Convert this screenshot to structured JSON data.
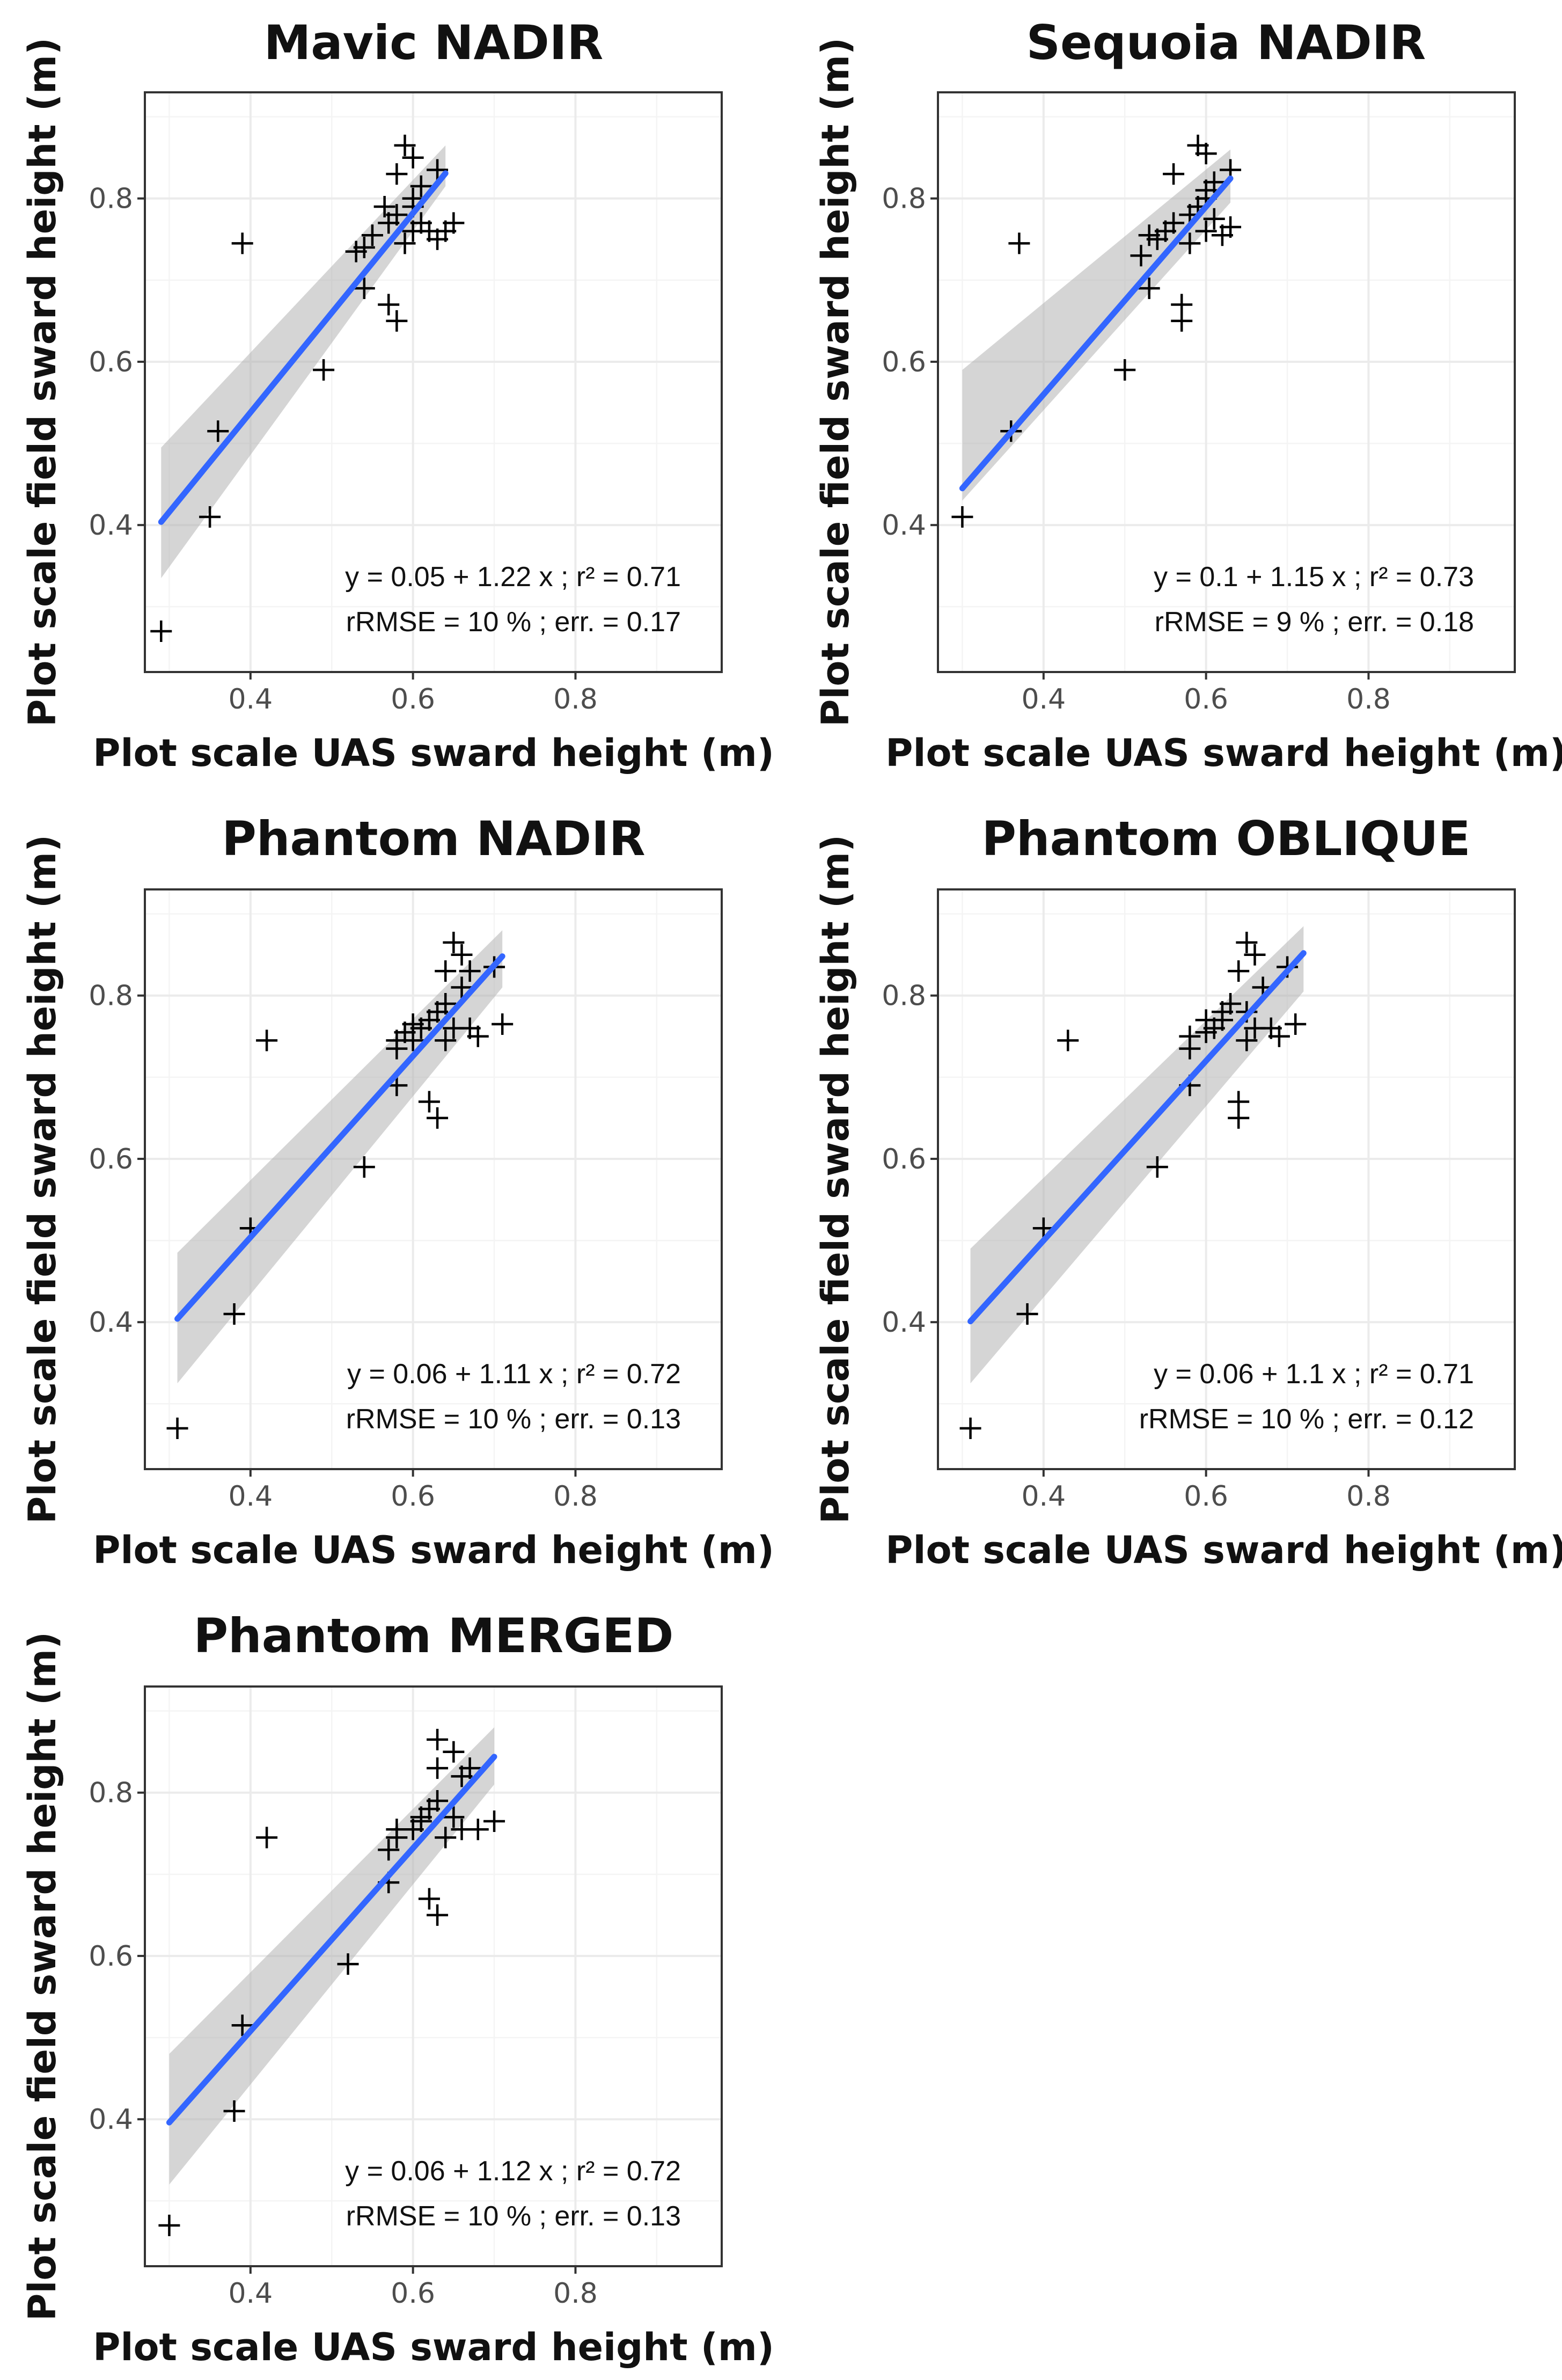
{
  "chart_data": [
    {
      "type": "scatter",
      "title": "Mavic NADIR",
      "xlabel": "Plot scale UAS sward height (m)",
      "ylabel": "Plot scale field sward height (m)",
      "xlim": [
        0.27,
        0.98
      ],
      "ylim": [
        0.22,
        0.93
      ],
      "xticks": [
        0.4,
        0.6,
        0.8
      ],
      "yticks": [
        0.4,
        0.6,
        0.8
      ],
      "xtick_labels": [
        "0.4",
        "0.6",
        "0.8"
      ],
      "ytick_labels": [
        "0.4",
        "0.6",
        "0.8"
      ],
      "points": [
        [
          0.29,
          0.27
        ],
        [
          0.35,
          0.41
        ],
        [
          0.36,
          0.515
        ],
        [
          0.39,
          0.745
        ],
        [
          0.49,
          0.59
        ],
        [
          0.53,
          0.735
        ],
        [
          0.54,
          0.69
        ],
        [
          0.54,
          0.74
        ],
        [
          0.55,
          0.755
        ],
        [
          0.57,
          0.77
        ],
        [
          0.57,
          0.67
        ],
        [
          0.58,
          0.65
        ],
        [
          0.58,
          0.83
        ],
        [
          0.58,
          0.78
        ],
        [
          0.59,
          0.865
        ],
        [
          0.59,
          0.745
        ],
        [
          0.6,
          0.76
        ],
        [
          0.6,
          0.85
        ],
        [
          0.6,
          0.8
        ],
        [
          0.61,
          0.77
        ],
        [
          0.62,
          0.76
        ],
        [
          0.63,
          0.835
        ],
        [
          0.63,
          0.75
        ],
        [
          0.64,
          0.76
        ],
        [
          0.65,
          0.77
        ],
        [
          0.565,
          0.79
        ],
        [
          0.61,
          0.815
        ],
        [
          0.6,
          0.79
        ]
      ],
      "fit": {
        "x": [
          0.29,
          0.64
        ],
        "intercept": 0.05,
        "slope": 1.22,
        "ci_low": [
          0.335,
          0.815
        ],
        "ci_high": [
          0.495,
          0.865
        ]
      },
      "annotation": [
        "y = 0.05 + 1.22 x ; r² = 0.71",
        "rRMSE = 10 % ; err. = 0.17"
      ]
    },
    {
      "type": "scatter",
      "title": "Sequoia NADIR",
      "xlabel": "Plot scale UAS sward height (m)",
      "ylabel": "Plot scale field sward height (m)",
      "xlim": [
        0.27,
        0.98
      ],
      "ylim": [
        0.22,
        0.93
      ],
      "xticks": [
        0.4,
        0.6,
        0.8
      ],
      "yticks": [
        0.4,
        0.6,
        0.8
      ],
      "xtick_labels": [
        "0.4",
        "0.6",
        "0.8"
      ],
      "ytick_labels": [
        "0.4",
        "0.6",
        "0.8"
      ],
      "points": [
        [
          0.3,
          0.41
        ],
        [
          0.36,
          0.515
        ],
        [
          0.37,
          0.745
        ],
        [
          0.5,
          0.59
        ],
        [
          0.52,
          0.73
        ],
        [
          0.53,
          0.69
        ],
        [
          0.53,
          0.755
        ],
        [
          0.54,
          0.75
        ],
        [
          0.55,
          0.76
        ],
        [
          0.56,
          0.77
        ],
        [
          0.56,
          0.83
        ],
        [
          0.57,
          0.67
        ],
        [
          0.57,
          0.65
        ],
        [
          0.58,
          0.745
        ],
        [
          0.58,
          0.78
        ],
        [
          0.59,
          0.865
        ],
        [
          0.59,
          0.79
        ],
        [
          0.6,
          0.855
        ],
        [
          0.6,
          0.76
        ],
        [
          0.6,
          0.8
        ],
        [
          0.61,
          0.775
        ],
        [
          0.62,
          0.755
        ],
        [
          0.63,
          0.835
        ],
        [
          0.63,
          0.765
        ],
        [
          0.61,
          0.82
        ],
        [
          0.6,
          0.81
        ]
      ],
      "fit": {
        "x": [
          0.3,
          0.63
        ],
        "intercept": 0.1,
        "slope": 1.15,
        "ci_low": [
          0.43,
          0.795
        ],
        "ci_high": [
          0.59,
          0.86
        ]
      },
      "annotation": [
        "y = 0.1 + 1.15 x ; r² = 0.73",
        "rRMSE = 9 % ; err. = 0.18"
      ]
    },
    {
      "type": "scatter",
      "title": "Phantom NADIR",
      "xlabel": "Plot scale UAS sward height (m)",
      "ylabel": "Plot scale field sward height (m)",
      "xlim": [
        0.27,
        0.98
      ],
      "ylim": [
        0.22,
        0.93
      ],
      "xticks": [
        0.4,
        0.6,
        0.8
      ],
      "yticks": [
        0.4,
        0.6,
        0.8
      ],
      "xtick_labels": [
        "0.4",
        "0.6",
        "0.8"
      ],
      "ytick_labels": [
        "0.4",
        "0.6",
        "0.8"
      ],
      "points": [
        [
          0.31,
          0.27
        ],
        [
          0.38,
          0.41
        ],
        [
          0.4,
          0.515
        ],
        [
          0.42,
          0.745
        ],
        [
          0.54,
          0.59
        ],
        [
          0.58,
          0.69
        ],
        [
          0.58,
          0.735
        ],
        [
          0.58,
          0.745
        ],
        [
          0.59,
          0.755
        ],
        [
          0.6,
          0.745
        ],
        [
          0.61,
          0.76
        ],
        [
          0.62,
          0.67
        ],
        [
          0.62,
          0.77
        ],
        [
          0.63,
          0.65
        ],
        [
          0.63,
          0.78
        ],
        [
          0.64,
          0.79
        ],
        [
          0.64,
          0.83
        ],
        [
          0.64,
          0.745
        ],
        [
          0.65,
          0.865
        ],
        [
          0.65,
          0.76
        ],
        [
          0.66,
          0.85
        ],
        [
          0.66,
          0.81
        ],
        [
          0.67,
          0.83
        ],
        [
          0.67,
          0.76
        ],
        [
          0.68,
          0.75
        ],
        [
          0.7,
          0.835
        ],
        [
          0.71,
          0.765
        ],
        [
          0.6,
          0.765
        ]
      ],
      "fit": {
        "x": [
          0.31,
          0.71
        ],
        "intercept": 0.06,
        "slope": 1.11,
        "ci_low": [
          0.325,
          0.81
        ],
        "ci_high": [
          0.485,
          0.88
        ]
      },
      "annotation": [
        "y = 0.06 + 1.11 x ; r² = 0.72",
        "rRMSE = 10 % ; err. = 0.13"
      ]
    },
    {
      "type": "scatter",
      "title": "Phantom OBLIQUE",
      "xlabel": "Plot scale UAS sward height (m)",
      "ylabel": "Plot scale field sward height (m)",
      "xlim": [
        0.27,
        0.98
      ],
      "ylim": [
        0.22,
        0.93
      ],
      "xticks": [
        0.4,
        0.6,
        0.8
      ],
      "yticks": [
        0.4,
        0.6,
        0.8
      ],
      "xtick_labels": [
        "0.4",
        "0.6",
        "0.8"
      ],
      "ytick_labels": [
        "0.4",
        "0.6",
        "0.8"
      ],
      "points": [
        [
          0.31,
          0.27
        ],
        [
          0.38,
          0.41
        ],
        [
          0.4,
          0.515
        ],
        [
          0.43,
          0.745
        ],
        [
          0.54,
          0.59
        ],
        [
          0.58,
          0.69
        ],
        [
          0.58,
          0.735
        ],
        [
          0.58,
          0.75
        ],
        [
          0.6,
          0.755
        ],
        [
          0.61,
          0.76
        ],
        [
          0.62,
          0.77
        ],
        [
          0.63,
          0.79
        ],
        [
          0.64,
          0.67
        ],
        [
          0.64,
          0.65
        ],
        [
          0.64,
          0.83
        ],
        [
          0.65,
          0.865
        ],
        [
          0.65,
          0.78
        ],
        [
          0.65,
          0.745
        ],
        [
          0.66,
          0.85
        ],
        [
          0.66,
          0.76
        ],
        [
          0.67,
          0.81
        ],
        [
          0.68,
          0.76
        ],
        [
          0.69,
          0.75
        ],
        [
          0.7,
          0.835
        ],
        [
          0.71,
          0.765
        ],
        [
          0.62,
          0.78
        ],
        [
          0.6,
          0.77
        ]
      ],
      "fit": {
        "x": [
          0.31,
          0.72
        ],
        "intercept": 0.06,
        "slope": 1.1,
        "ci_low": [
          0.325,
          0.805
        ],
        "ci_high": [
          0.49,
          0.885
        ]
      },
      "annotation": [
        "y = 0.06 + 1.1 x ; r² = 0.71",
        "rRMSE = 10 % ; err. = 0.12"
      ]
    },
    {
      "type": "scatter",
      "title": "Phantom MERGED",
      "xlabel": "Plot scale UAS sward height (m)",
      "ylabel": "Plot scale field sward height (m)",
      "xlim": [
        0.27,
        0.98
      ],
      "ylim": [
        0.22,
        0.93
      ],
      "xticks": [
        0.4,
        0.6,
        0.8
      ],
      "yticks": [
        0.4,
        0.6,
        0.8
      ],
      "xtick_labels": [
        "0.4",
        "0.6",
        "0.8"
      ],
      "ytick_labels": [
        "0.4",
        "0.6",
        "0.8"
      ],
      "points": [
        [
          0.3,
          0.27
        ],
        [
          0.38,
          0.41
        ],
        [
          0.39,
          0.515
        ],
        [
          0.42,
          0.745
        ],
        [
          0.52,
          0.59
        ],
        [
          0.57,
          0.69
        ],
        [
          0.57,
          0.73
        ],
        [
          0.58,
          0.745
        ],
        [
          0.58,
          0.755
        ],
        [
          0.6,
          0.755
        ],
        [
          0.61,
          0.77
        ],
        [
          0.62,
          0.67
        ],
        [
          0.62,
          0.78
        ],
        [
          0.63,
          0.65
        ],
        [
          0.63,
          0.865
        ],
        [
          0.63,
          0.83
        ],
        [
          0.63,
          0.79
        ],
        [
          0.64,
          0.745
        ],
        [
          0.65,
          0.77
        ],
        [
          0.65,
          0.85
        ],
        [
          0.66,
          0.755
        ],
        [
          0.66,
          0.82
        ],
        [
          0.67,
          0.83
        ],
        [
          0.68,
          0.755
        ],
        [
          0.7,
          0.765
        ],
        [
          0.61,
          0.765
        ]
      ],
      "fit": {
        "x": [
          0.3,
          0.7
        ],
        "intercept": 0.06,
        "slope": 1.12,
        "ci_low": [
          0.32,
          0.81
        ],
        "ci_high": [
          0.48,
          0.88
        ]
      },
      "annotation": [
        "y = 0.06 + 1.12 x ; r² = 0.72",
        "rRMSE = 10 % ; err. = 0.13"
      ]
    }
  ]
}
